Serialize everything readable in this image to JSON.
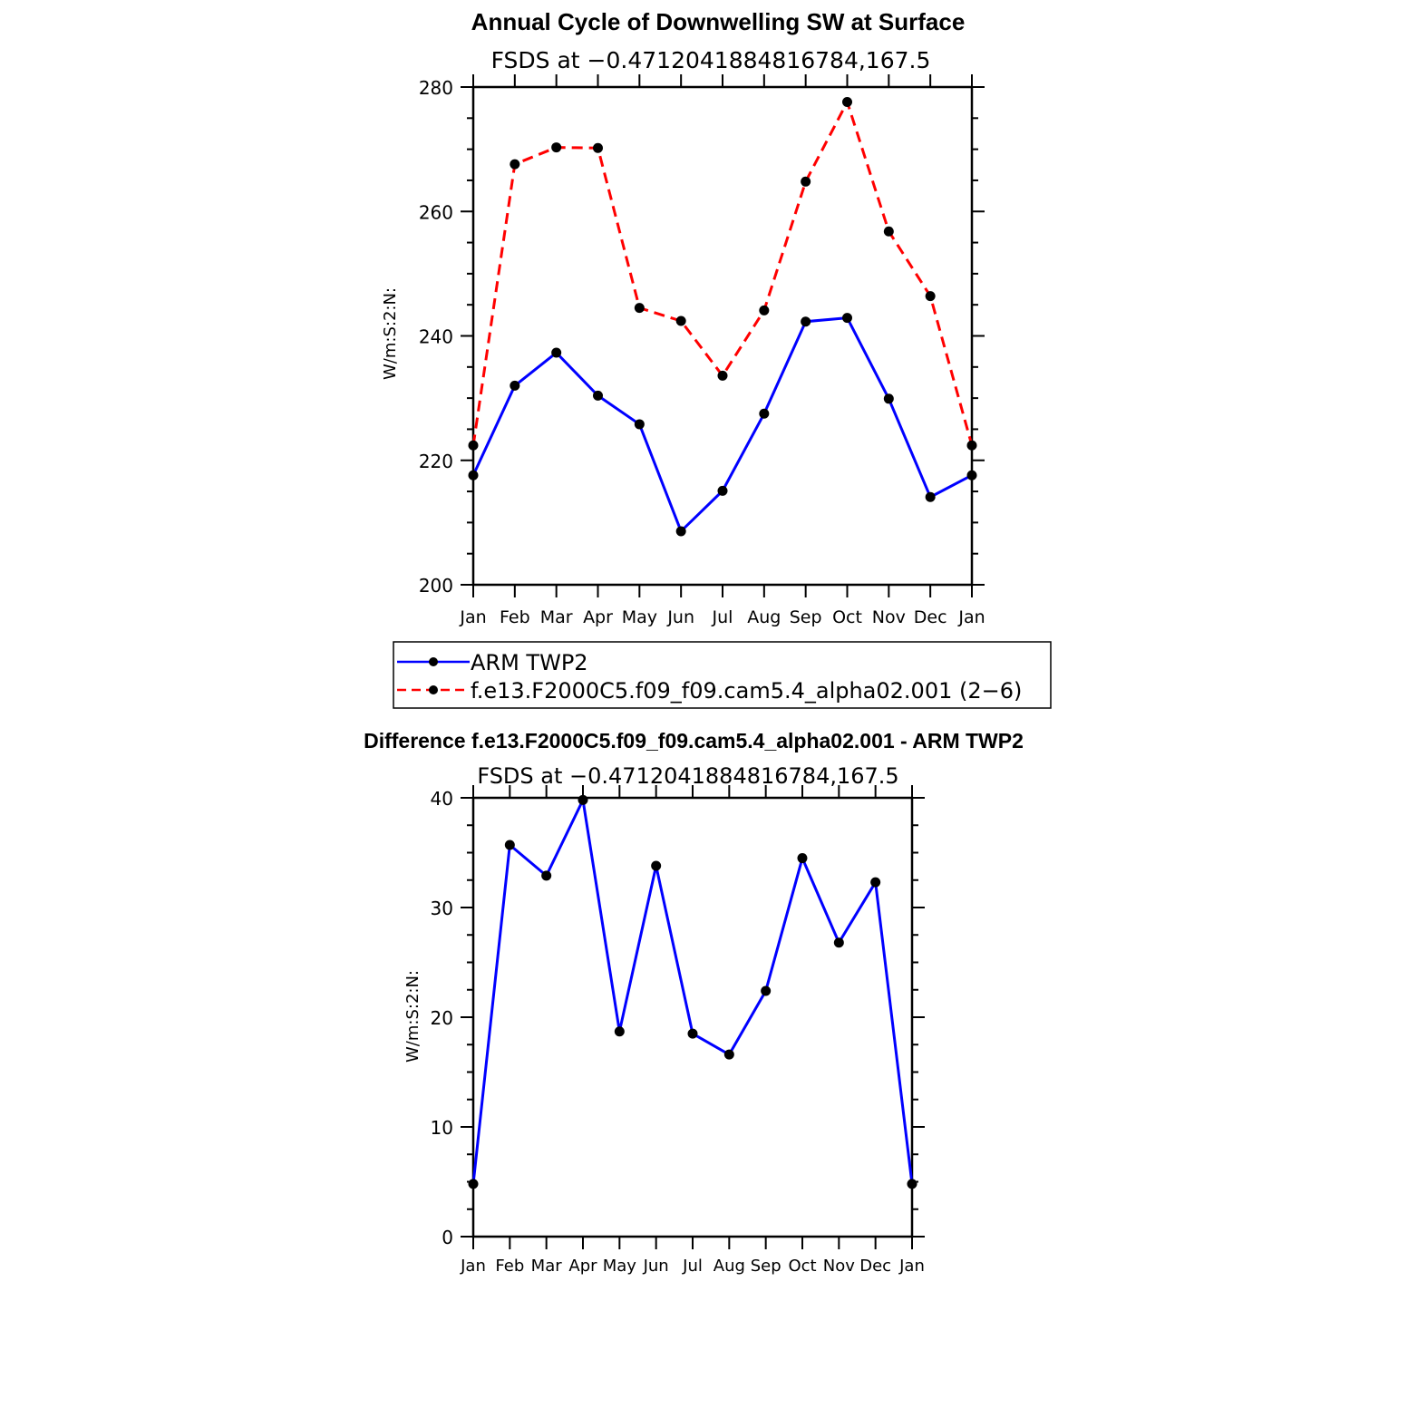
{
  "chart_data": [
    {
      "type": "line",
      "title": "Annual Cycle of Downwelling SW at Surface",
      "subtitle": "FSDS at −0.4712041884816784,167.5",
      "ylabel": "W/m:S:2:N:",
      "xlabel": "",
      "ylim": [
        200,
        280
      ],
      "yticks": [
        "200",
        "220",
        "240",
        "260",
        "280"
      ],
      "categories": [
        "Jan",
        "Feb",
        "Mar",
        "Apr",
        "May",
        "Jun",
        "Jul",
        "Aug",
        "Sep",
        "Oct",
        "Nov",
        "Dec",
        "Jan"
      ],
      "grid": false,
      "legend_position": "bottom",
      "series": [
        {
          "name": "ARM TWP2",
          "color": "#0000ff",
          "dash": "solid",
          "values": [
            217.6,
            232.0,
            237.3,
            230.4,
            225.8,
            208.6,
            215.1,
            227.5,
            242.3,
            242.9,
            229.9,
            214.1,
            217.6
          ]
        },
        {
          "name": "f.e13.F2000C5.f09_f09.cam5.4_alpha02.001 (2−6)",
          "color": "#ff0000",
          "dash": "dashed",
          "values": [
            222.4,
            267.6,
            270.3,
            270.2,
            244.5,
            242.4,
            233.6,
            244.1,
            264.8,
            277.6,
            256.8,
            246.4,
            222.4
          ]
        }
      ]
    },
    {
      "type": "line",
      "title": "Difference f.e13.F2000C5.f09_f09.cam5.4_alpha02.001 - ARM TWP2",
      "subtitle": "FSDS at −0.4712041884816784,167.5",
      "ylabel": "W/m:S:2:N:",
      "xlabel": "",
      "ylim": [
        0,
        40
      ],
      "yticks": [
        "0",
        "10",
        "20",
        "30",
        "40"
      ],
      "categories": [
        "Jan",
        "Feb",
        "Mar",
        "Apr",
        "May",
        "Jun",
        "Jul",
        "Aug",
        "Sep",
        "Oct",
        "Nov",
        "Dec",
        "Jan"
      ],
      "grid": false,
      "series": [
        {
          "color": "#0000ff",
          "dash": "solid",
          "values": [
            4.8,
            35.7,
            32.9,
            39.8,
            18.7,
            33.8,
            18.5,
            16.6,
            22.4,
            34.5,
            26.8,
            32.3,
            4.8
          ]
        }
      ]
    }
  ]
}
